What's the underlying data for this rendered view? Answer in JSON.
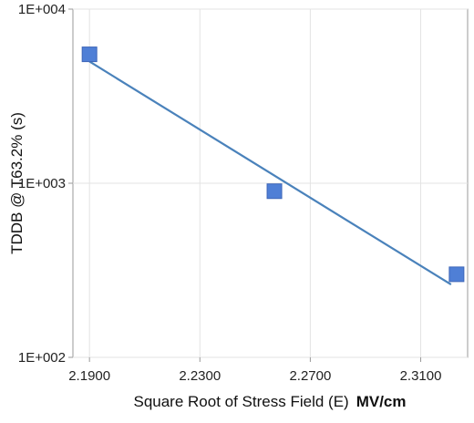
{
  "chart_data": {
    "type": "scatter",
    "xlabel": "Square Root of Stress Field (E)",
    "xlabel_unit": "MV/cm",
    "ylabel": "TDDB @ T63.2% (s)",
    "y_scale": "log",
    "xlim": [
      2.184,
      2.327
    ],
    "ylim": [
      100,
      10000
    ],
    "x_ticks": [
      {
        "value": 2.19,
        "label": "2.1900"
      },
      {
        "value": 2.23,
        "label": "2.2300"
      },
      {
        "value": 2.27,
        "label": "2.2700"
      },
      {
        "value": 2.31,
        "label": "2.3100"
      }
    ],
    "y_ticks": [
      {
        "value": 100,
        "label": "1E+002"
      },
      {
        "value": 1000,
        "label": "1E+003"
      },
      {
        "value": 10000,
        "label": "1E+004"
      }
    ],
    "grid": true,
    "series": [
      {
        "points": [
          {
            "x": 2.19,
            "y": 5500
          },
          {
            "x": 2.257,
            "y": 900
          },
          {
            "x": 2.323,
            "y": 300
          }
        ],
        "marker": "square",
        "color": "#4f7fd6"
      }
    ],
    "fit_line": {
      "points": [
        {
          "x": 2.19,
          "y": 5000
        },
        {
          "x": 2.321,
          "y": 262
        }
      ],
      "color": "#4a82bb"
    }
  }
}
